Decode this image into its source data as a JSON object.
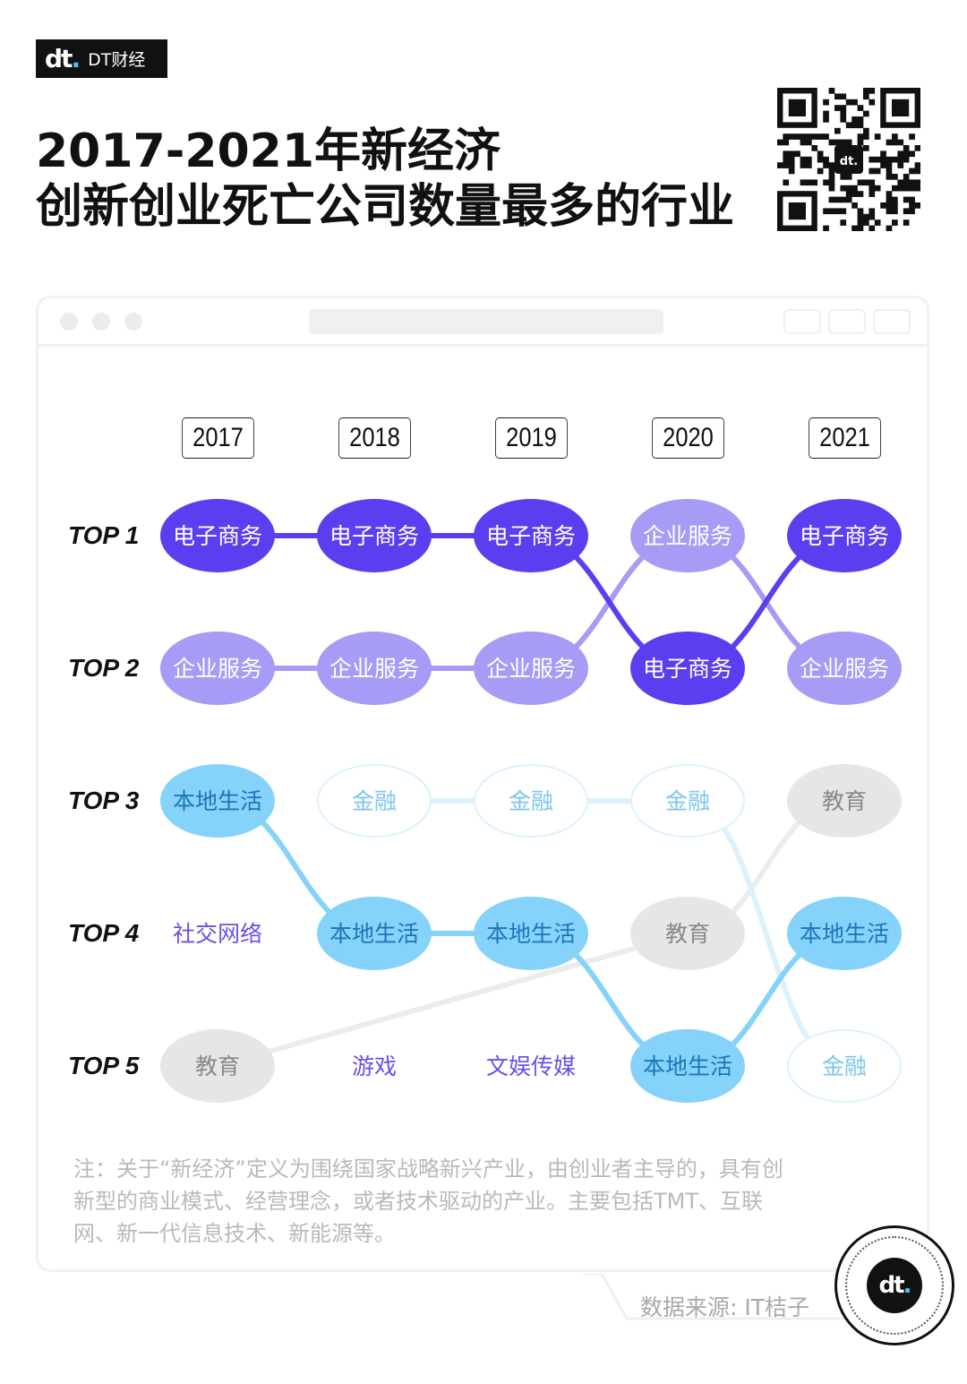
{
  "brand": {
    "logo": "dt.",
    "name": "DT财经"
  },
  "title": {
    "line1": "2017-2021年新经济",
    "line2": "创新创业死亡公司数量最多的行业"
  },
  "colors": {
    "dark_purple": "#5b3ef0",
    "light_purple": "#a69cf6",
    "light_blue": "#85d2fa",
    "gray": "#e6e6e6",
    "outline_blue": "#dcf1fc",
    "text_purple": "#6a4fe6",
    "text_blue": "#1d74b8",
    "text_gray": "#888888"
  },
  "chart_data": {
    "type": "bump",
    "title": "2017-2021年新经济创新创业死亡公司数量最多的行业",
    "years": [
      "2017",
      "2018",
      "2019",
      "2020",
      "2021"
    ],
    "ranks": [
      "TOP 1",
      "TOP 2",
      "TOP 3",
      "TOP 4",
      "TOP 5"
    ],
    "rankings": {
      "2017": [
        "电子商务",
        "企业服务",
        "本地生活",
        "社交网络",
        "教育"
      ],
      "2018": [
        "电子商务",
        "企业服务",
        "金融",
        "本地生活",
        "游戏"
      ],
      "2019": [
        "电子商务",
        "企业服务",
        "金融",
        "本地生活",
        "文娱传媒"
      ],
      "2020": [
        "企业服务",
        "电子商务",
        "金融",
        "教育",
        "本地生活"
      ],
      "2021": [
        "电子商务",
        "企业服务",
        "教育",
        "本地生活",
        "金融"
      ]
    },
    "series": [
      {
        "name": "电子商务",
        "style": "dark_purple",
        "ranks": [
          1,
          1,
          1,
          2,
          1
        ]
      },
      {
        "name": "企业服务",
        "style": "light_purple",
        "ranks": [
          2,
          2,
          2,
          1,
          2
        ]
      },
      {
        "name": "本地生活",
        "style": "light_blue",
        "ranks": [
          3,
          4,
          4,
          5,
          4
        ]
      },
      {
        "name": "金融",
        "style": "outline_blue",
        "ranks": [
          null,
          3,
          3,
          3,
          5
        ]
      },
      {
        "name": "教育",
        "style": "gray",
        "ranks": [
          5,
          null,
          null,
          4,
          3
        ]
      },
      {
        "name": "社交网络",
        "style": "text_purple",
        "ranks": [
          4,
          null,
          null,
          null,
          null
        ]
      },
      {
        "name": "游戏",
        "style": "text_purple",
        "ranks": [
          null,
          5,
          null,
          null,
          null
        ]
      },
      {
        "name": "文娱传媒",
        "style": "text_purple",
        "ranks": [
          null,
          null,
          5,
          null,
          null
        ]
      }
    ]
  },
  "note": "注：关于“新经济”定义为围绕国家战略新兴产业，由创业者主导的，具有创新型的商业模式、经营理念，或者技术驱动的产业。主要包括TMT、互联网、新一代信息技术、新能源等。",
  "source": "数据来源: IT桔子",
  "icons": [
    "qr-code-icon",
    "window-close-icon",
    "window-minimize-icon",
    "window-block-icon",
    "dt-logo-icon"
  ]
}
